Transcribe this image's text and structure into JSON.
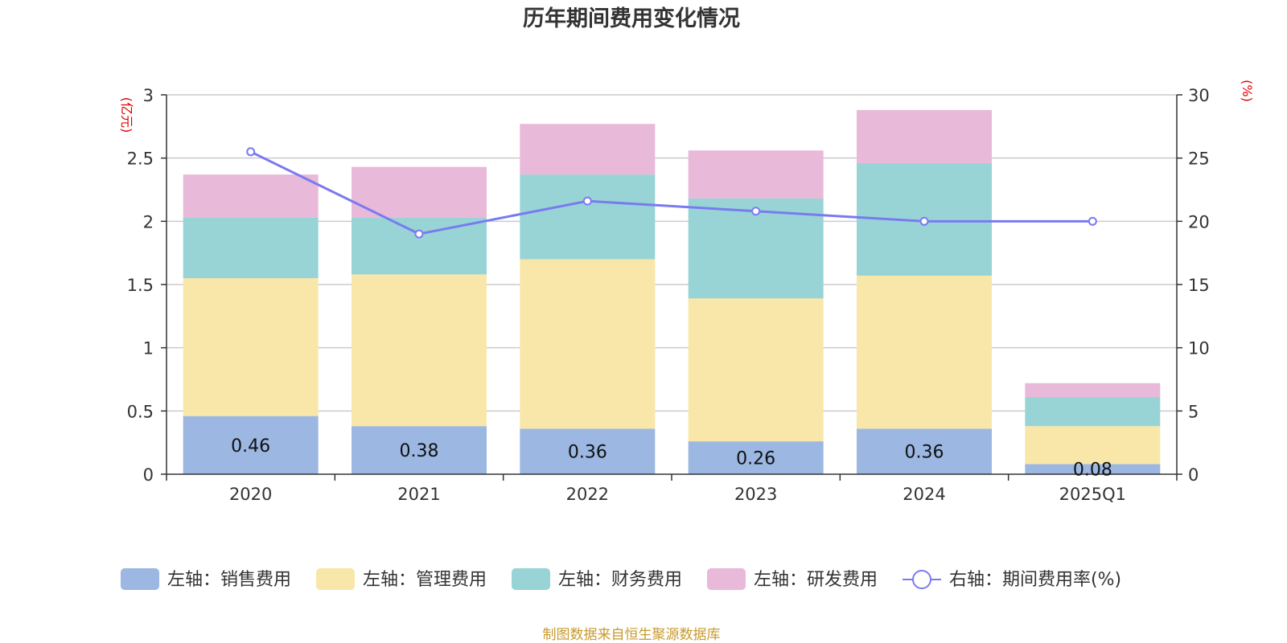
{
  "chart_data": {
    "type": "bar",
    "title": "历年期间费用变化情况",
    "categories": [
      "2020",
      "2021",
      "2022",
      "2023",
      "2024",
      "2025Q1"
    ],
    "series": [
      {
        "name": "左轴：销售费用",
        "axis": "left",
        "color": "#9bb7e2",
        "values": [
          0.46,
          0.38,
          0.36,
          0.26,
          0.36,
          0.08
        ]
      },
      {
        "name": "左轴：管理费用",
        "axis": "left",
        "color": "#f8e7a8",
        "values": [
          1.09,
          1.2,
          1.34,
          1.13,
          1.21,
          0.3
        ]
      },
      {
        "name": "左轴：财务费用",
        "axis": "left",
        "color": "#98d4d5",
        "values": [
          0.48,
          0.45,
          0.67,
          0.79,
          0.89,
          0.23
        ]
      },
      {
        "name": "左轴：研发费用",
        "axis": "left",
        "color": "#e8b9d9",
        "values": [
          0.34,
          0.4,
          0.4,
          0.38,
          0.42,
          0.11
        ]
      }
    ],
    "line_series": {
      "name": "右轴：期间费用率(%)",
      "axis": "right",
      "color": "#7a7af0",
      "values": [
        25.5,
        19.0,
        21.6,
        20.8,
        20.0,
        20.0
      ]
    },
    "bar_labels": [
      "0.46",
      "0.38",
      "0.36",
      "0.26",
      "0.36",
      "0.08"
    ],
    "y_left": {
      "label": "(亿元)",
      "ylim": [
        0,
        3
      ],
      "ticks": [
        0,
        0.5,
        1,
        1.5,
        2,
        2.5,
        3
      ],
      "tick_labels": [
        "0",
        "0.5",
        "1",
        "1.5",
        "2",
        "2.5",
        "3"
      ]
    },
    "y_right": {
      "label": "(%)",
      "ylim": [
        0,
        30
      ],
      "ticks": [
        0,
        5,
        10,
        15,
        20,
        25,
        30
      ],
      "tick_labels": [
        "0",
        "5",
        "10",
        "15",
        "20",
        "25",
        "30"
      ]
    },
    "grid": true,
    "legend_position": "bottom"
  },
  "footer": "制图数据来自恒生聚源数据库"
}
